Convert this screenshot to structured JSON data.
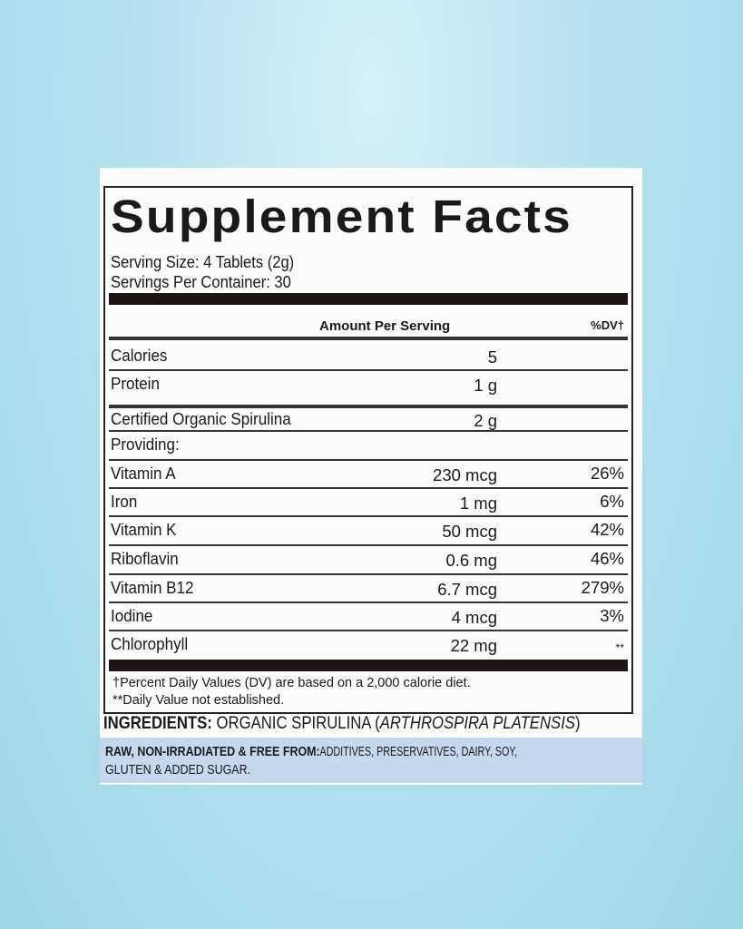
{
  "title": "Supplement Facts",
  "serving_size": "Serving Size: 4 Tablets (2g)",
  "servings_per_container": "Servings Per Container: 30",
  "header": {
    "amount": "Amount Per Serving",
    "dv": "%DV†"
  },
  "rows": [
    {
      "name": "Calories",
      "amount": "5",
      "dv": ""
    },
    {
      "name": "Protein",
      "amount": "1 g",
      "dv": ""
    },
    {
      "name": "Certified Organic Spirulina",
      "amount": "2 g",
      "dv": ""
    },
    {
      "name": "Providing:",
      "amount": "",
      "dv": ""
    },
    {
      "name": "Vitamin A",
      "amount": "230 mcg",
      "dv": "26%"
    },
    {
      "name": "Iron",
      "amount": "1 mg",
      "dv": "6%"
    },
    {
      "name": "Vitamin K",
      "amount": "50 mcg",
      "dv": "42%"
    },
    {
      "name": "Riboflavin",
      "amount": "0.6 mg",
      "dv": "46%"
    },
    {
      "name": "Vitamin B12",
      "amount": "6.7 mcg",
      "dv": "279%"
    },
    {
      "name": "Iodine",
      "amount": "4 mcg",
      "dv": "3%"
    },
    {
      "name": "Chlorophyll",
      "amount": "22 mg",
      "dv": "**"
    }
  ],
  "footnotes": [
    "†Percent Daily Values (DV) are based on a 2,000 calorie diet.",
    "**Daily Value not established."
  ],
  "ingredients": {
    "label": "INGREDIENTS:",
    "text": " ORGANIC SPIRULINA (",
    "italic": "ARTHROSPIRA PLATENSIS",
    "close": ")"
  },
  "free_from": {
    "label": "RAW, NON-IRRADIATED & FREE FROM:",
    "text": " ADDITIVES, PRESERVATIVES, DAIRY, SOY,",
    "line2": "GLUTEN & ADDED SUGAR."
  }
}
